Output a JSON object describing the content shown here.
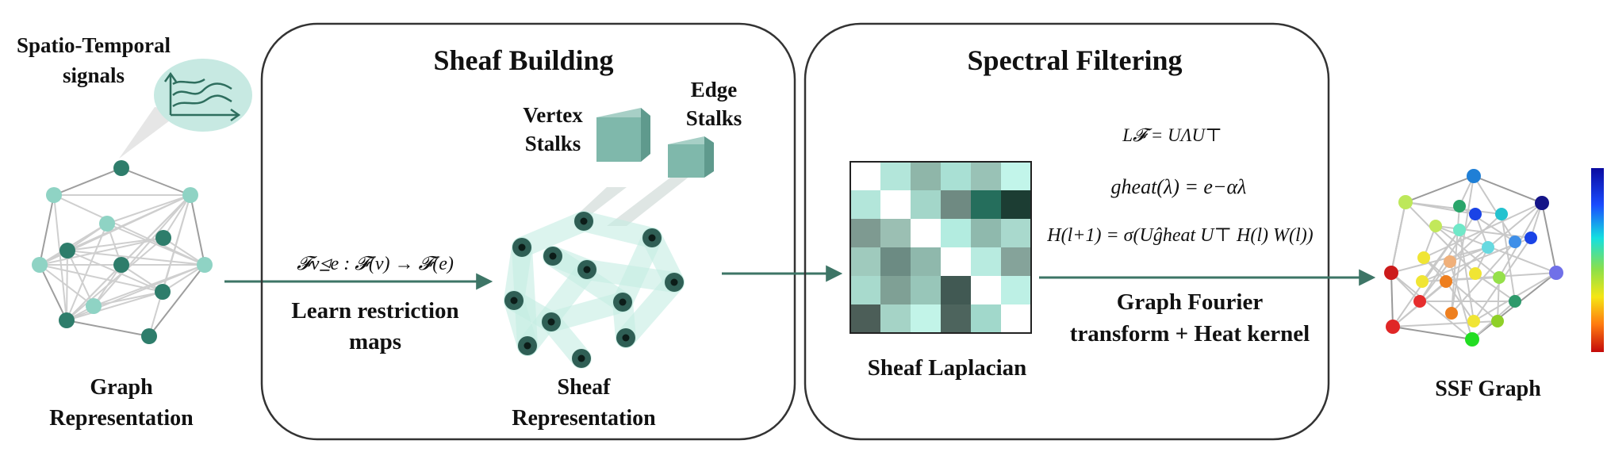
{
  "labels": {
    "st_signals_line1": "Spatio-Temporal",
    "st_signals_line2": "signals",
    "graph_rep_line1": "Graph",
    "graph_rep_line2": "Representation",
    "sheaf_building_title": "Sheaf Building",
    "spectral_filtering_title": "Spectral Filtering",
    "vertex_stalks_line1": "Vertex",
    "vertex_stalks_line2": "Stalks",
    "edge_stalks_line1": "Edge",
    "edge_stalks_line2": "Stalks",
    "restriction_formula": "𝓕v⊴e : 𝓕(v) → 𝓕(e)",
    "learn_line1": "Learn restriction",
    "learn_line2": "maps",
    "sheaf_rep_line1": "Sheaf",
    "sheaf_rep_line2": "Representation",
    "sheaf_laplacian": "Sheaf Laplacian",
    "eq1": "L𝓕 = UΛU⊤",
    "eq2": "gheat(λ) = e−αλ",
    "eq3": "H(l+1) = σ(Uĝheat U⊤ H(l) W(l))",
    "gft_line1": "Graph Fourier",
    "gft_line2": "transform + Heat kernel",
    "ssf_graph": "SSF Graph"
  },
  "colors": {
    "teal_dark": "#2e6e5e",
    "teal_light": "#8fd3c4",
    "box_border": "#333333",
    "arrow": "#3d7566",
    "edge_gray": "#c8c8c8"
  },
  "laplacian_matrix": [
    [
      "#ffffff",
      "#b3e6da",
      "#8fb6a9",
      "#a9e0d4",
      "#99c2b6",
      "#c2f5ea"
    ],
    [
      "#b3e6da",
      "#ffffff",
      "#a3d6c9",
      "#6f8a82",
      "#256e5c",
      "#1c3d33"
    ],
    [
      "#7e9a91",
      "#9bbfb3",
      "#ffffff",
      "#b3ece0",
      "#8fb9ad",
      "#a9d9cd"
    ],
    [
      "#9fcabd",
      "#6c8b83",
      "#8fb8ac",
      "#ffffff",
      "#b8ebe0",
      "#85a39a"
    ],
    [
      "#a8dacd",
      "#7fa095",
      "#98c6b9",
      "#415953",
      "#ffffff",
      "#bdf0e5"
    ],
    [
      "#4c5e58",
      "#a5d3c6",
      "#c2f4e8",
      "#4d645d",
      "#a1d8cb",
      "#ffffff"
    ]
  ],
  "ssf_node_colors": [
    "#1f7fd6",
    "#1f7fd6",
    "#2b2bcf",
    "#3a3aee",
    "#6a6ae8",
    "#2bd46a",
    "#6bcb2b",
    "#cc1b1b",
    "#2e9a6b"
  ]
}
